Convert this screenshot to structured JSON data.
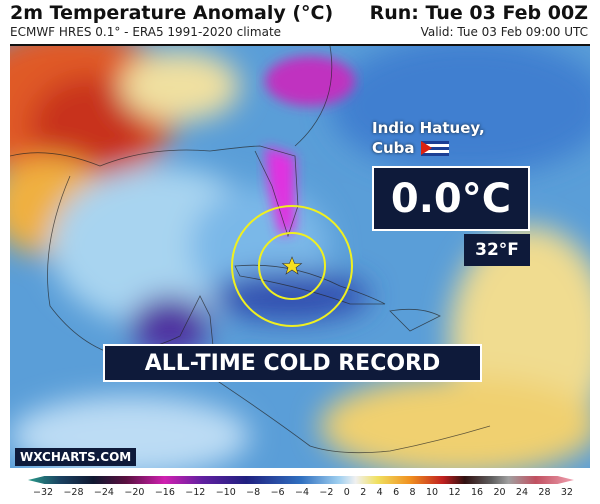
{
  "header": {
    "title": "2m Temperature Anomaly (°C)",
    "subtitle": "ECMWF HRES 0.1° - ERA5 1991-2020 climate",
    "run": "Run: Tue 03 Feb 00Z",
    "valid": "Valid: Tue 03 Feb 09:00 UTC"
  },
  "callout": {
    "location": "Indio Hatuey,\nCuba",
    "flag_icon": "cuba-flag-icon",
    "temp_c": "0.0°C",
    "temp_f": "32°F",
    "record": "ALL-TIME COLD RECORD"
  },
  "brand": "WXCHARTS.COM",
  "colorbar": {
    "ticks": [
      "−32",
      "−28",
      "−24",
      "−20",
      "−16",
      "−12",
      "−10",
      "−8",
      "−6",
      "−4",
      "−2",
      "0",
      "2",
      "4",
      "6",
      "8",
      "10",
      "12",
      "16",
      "20",
      "24",
      "28",
      "32"
    ]
  }
}
